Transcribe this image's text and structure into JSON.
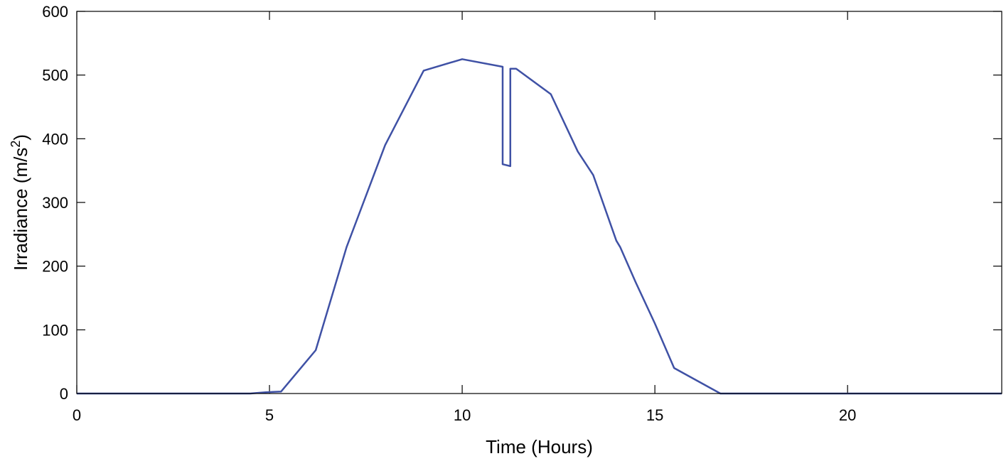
{
  "chart_data": {
    "type": "line",
    "xlabel": "Time (Hours)",
    "ylabel": {
      "main": "Irradiance (m/s",
      "superscript": "2",
      "close": ")"
    },
    "xlim": [
      0,
      24
    ],
    "ylim": [
      0,
      600
    ],
    "x_ticks": [
      0,
      5,
      10,
      15,
      20
    ],
    "y_ticks": [
      0,
      100,
      200,
      300,
      400,
      500,
      600
    ],
    "grid": false,
    "line_color": "#3f51a5",
    "series": [
      {
        "x": [
          0,
          4.5,
          4.9,
          5.3,
          6.2,
          7.0,
          8.0,
          9.0,
          10.0,
          11.05,
          11.05,
          11.25,
          11.25,
          11.4,
          12.3,
          13.0,
          13.4,
          14.0,
          14.1,
          14.5,
          15.0,
          15.5,
          15.8,
          16.7,
          24
        ],
        "y": [
          0,
          0,
          2,
          3,
          68,
          230,
          390,
          507,
          525,
          513,
          360,
          357,
          510,
          510,
          470,
          380,
          343,
          240,
          230,
          175,
          110,
          40,
          30,
          0,
          0
        ]
      }
    ]
  }
}
